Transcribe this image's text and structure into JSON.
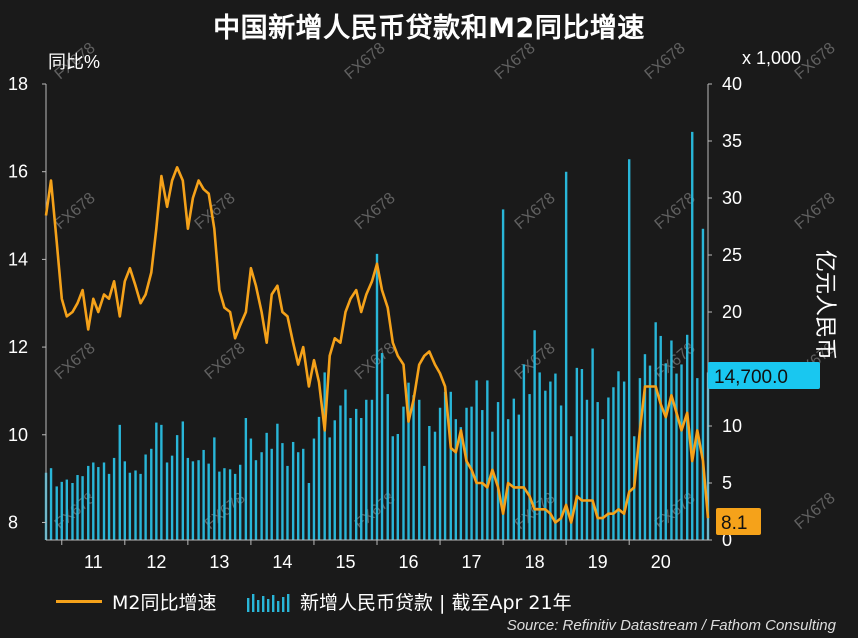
{
  "title": "中国新增人民币贷款和M2同比增速",
  "watermark": "FX678",
  "source": "Source: Refinitiv Datastream / Fathom Consulting",
  "colors": {
    "line": "#f5a21a",
    "bars": "#29b6d8",
    "bg": "#1a1a1a",
    "right_tag": "#19c7f0",
    "left_tag": "#f5a21a"
  },
  "chart_data": {
    "type": "bar+line",
    "left_axis": {
      "label": "同比%",
      "ticks": [
        "18",
        "16",
        "14",
        "12",
        "10",
        "8"
      ],
      "ylim": [
        7.6,
        18
      ]
    },
    "right_axis": {
      "label": "亿元人民币",
      "multiplier": "x 1,000",
      "ticks": [
        "40",
        "35",
        "30",
        "25",
        "20",
        "15",
        "10",
        "5",
        "0"
      ],
      "ylim": [
        0,
        40
      ]
    },
    "x_ticks": [
      "11",
      "12",
      "13",
      "14",
      "15",
      "16",
      "17",
      "18",
      "19",
      "20"
    ],
    "x_range": [
      2010.75,
      2021.25
    ],
    "end_labels": {
      "right": "14,700.0",
      "left": "8.1"
    },
    "legend": {
      "line": "M2同比增速",
      "bars": "新增人民币贷款 | 截至Apr 21年"
    },
    "series": [
      {
        "name": "M2同比增速",
        "type": "line",
        "x": [
          2010.75,
          2010.83,
          2010.92,
          2011.0,
          2011.08,
          2011.17,
          2011.25,
          2011.33,
          2011.42,
          2011.5,
          2011.58,
          2011.67,
          2011.75,
          2011.83,
          2011.92,
          2012.0,
          2012.08,
          2012.17,
          2012.25,
          2012.33,
          2012.42,
          2012.5,
          2012.58,
          2012.67,
          2012.75,
          2012.83,
          2012.92,
          2013.0,
          2013.08,
          2013.17,
          2013.25,
          2013.33,
          2013.42,
          2013.5,
          2013.58,
          2013.67,
          2013.75,
          2013.83,
          2013.92,
          2014.0,
          2014.08,
          2014.17,
          2014.25,
          2014.33,
          2014.42,
          2014.5,
          2014.58,
          2014.67,
          2014.75,
          2014.83,
          2014.92,
          2015.0,
          2015.08,
          2015.17,
          2015.25,
          2015.33,
          2015.42,
          2015.5,
          2015.58,
          2015.67,
          2015.75,
          2015.83,
          2015.92,
          2016.0,
          2016.08,
          2016.17,
          2016.25,
          2016.33,
          2016.42,
          2016.5,
          2016.58,
          2016.67,
          2016.75,
          2016.83,
          2016.92,
          2017.0,
          2017.08,
          2017.17,
          2017.25,
          2017.33,
          2017.42,
          2017.5,
          2017.58,
          2017.67,
          2017.75,
          2017.83,
          2017.92,
          2018.0,
          2018.08,
          2018.17,
          2018.25,
          2018.33,
          2018.42,
          2018.5,
          2018.58,
          2018.67,
          2018.75,
          2018.83,
          2018.92,
          2019.0,
          2019.08,
          2019.17,
          2019.25,
          2019.33,
          2019.42,
          2019.5,
          2019.58,
          2019.67,
          2019.75,
          2019.83,
          2019.92,
          2020.0,
          2020.08,
          2020.17,
          2020.25,
          2020.33,
          2020.42,
          2020.5,
          2020.58,
          2020.67,
          2020.75,
          2020.83,
          2020.92,
          2021.0,
          2021.08,
          2021.17,
          2021.25
        ],
        "values": [
          15.0,
          15.8,
          14.4,
          13.1,
          12.7,
          12.8,
          13.0,
          13.3,
          12.4,
          13.1,
          12.8,
          13.2,
          13.1,
          13.5,
          12.7,
          13.5,
          13.8,
          13.4,
          13.0,
          13.2,
          13.7,
          14.7,
          15.9,
          15.2,
          15.8,
          16.1,
          15.8,
          14.7,
          15.4,
          15.8,
          15.6,
          15.5,
          14.7,
          13.3,
          12.9,
          12.8,
          12.2,
          12.5,
          12.8,
          13.8,
          13.4,
          12.8,
          12.1,
          13.2,
          13.4,
          12.8,
          12.7,
          12.1,
          11.6,
          12.0,
          11.1,
          11.7,
          11.2,
          10.1,
          11.8,
          12.2,
          12.1,
          12.8,
          13.1,
          13.3,
          12.8,
          13.2,
          13.5,
          13.9,
          13.3,
          12.9,
          12.1,
          11.8,
          11.6,
          10.3,
          10.8,
          11.6,
          11.8,
          11.9,
          11.6,
          11.4,
          11.1,
          9.7,
          9.6,
          10.1,
          9.4,
          9.2,
          8.9,
          8.9,
          8.8,
          9.2,
          8.8,
          8.2,
          8.9,
          8.8,
          8.8,
          8.8,
          8.6,
          8.3,
          8.3,
          8.3,
          8.2,
          8.0,
          8.1,
          8.4,
          8.0,
          8.6,
          8.5,
          8.5,
          8.5,
          8.1,
          8.1,
          8.2,
          8.2,
          8.3,
          8.2,
          8.7,
          8.8,
          10.1,
          11.1,
          11.1,
          11.1,
          10.7,
          10.4,
          10.9,
          10.5,
          10.1,
          10.5,
          9.4,
          10.1,
          9.4,
          8.1
        ]
      },
      {
        "name": "新增人民币贷款",
        "type": "bar",
        "x": [
          2010.75,
          2010.83,
          2010.92,
          2011.0,
          2011.08,
          2011.17,
          2011.25,
          2011.33,
          2011.42,
          2011.5,
          2011.58,
          2011.67,
          2011.75,
          2011.83,
          2011.92,
          2012.0,
          2012.08,
          2012.17,
          2012.25,
          2012.33,
          2012.42,
          2012.5,
          2012.58,
          2012.67,
          2012.75,
          2012.83,
          2012.92,
          2013.0,
          2013.08,
          2013.17,
          2013.25,
          2013.33,
          2013.42,
          2013.5,
          2013.58,
          2013.67,
          2013.75,
          2013.83,
          2013.92,
          2014.0,
          2014.08,
          2014.17,
          2014.25,
          2014.33,
          2014.42,
          2014.5,
          2014.58,
          2014.67,
          2014.75,
          2014.83,
          2014.92,
          2015.0,
          2015.08,
          2015.17,
          2015.25,
          2015.33,
          2015.42,
          2015.5,
          2015.58,
          2015.67,
          2015.75,
          2015.83,
          2015.92,
          2016.0,
          2016.08,
          2016.17,
          2016.25,
          2016.33,
          2016.42,
          2016.5,
          2016.58,
          2016.67,
          2016.75,
          2016.83,
          2016.92,
          2017.0,
          2017.08,
          2017.17,
          2017.25,
          2017.33,
          2017.42,
          2017.5,
          2017.58,
          2017.67,
          2017.75,
          2017.83,
          2017.92,
          2018.0,
          2018.08,
          2018.17,
          2018.25,
          2018.33,
          2018.42,
          2018.5,
          2018.58,
          2018.67,
          2018.75,
          2018.83,
          2018.92,
          2019.0,
          2019.08,
          2019.17,
          2019.25,
          2019.33,
          2019.42,
          2019.5,
          2019.58,
          2019.67,
          2019.75,
          2019.83,
          2019.92,
          2020.0,
          2020.08,
          2020.17,
          2020.25,
          2020.33,
          2020.42,
          2020.5,
          2020.58,
          2020.67,
          2020.75,
          2020.83,
          2020.92,
          2021.0,
          2021.08,
          2021.17,
          2021.25
        ],
        "values": [
          5.9,
          6.3,
          4.7,
          5.1,
          5.3,
          5.0,
          5.7,
          5.6,
          6.5,
          6.8,
          6.4,
          6.8,
          5.8,
          7.2,
          10.1,
          6.9,
          5.9,
          6.1,
          5.8,
          7.5,
          8.0,
          10.3,
          10.1,
          6.8,
          7.4,
          9.2,
          10.4,
          7.2,
          6.9,
          7.0,
          7.9,
          6.7,
          9.0,
          6.0,
          6.3,
          6.2,
          5.8,
          6.6,
          10.7,
          8.9,
          7.0,
          7.7,
          9.4,
          8.0,
          10.2,
          8.5,
          6.5,
          8.6,
          7.7,
          8.0,
          5.0,
          8.9,
          10.8,
          14.7,
          9.0,
          10.5,
          11.8,
          13.2,
          10.7,
          11.5,
          10.7,
          12.3,
          12.3,
          25.1,
          16.4,
          12.8,
          9.1,
          9.3,
          11.7,
          13.8,
          12.7,
          12.3,
          6.5,
          10.0,
          9.5,
          11.6,
          13.0,
          13.0,
          10.6,
          9.9,
          11.6,
          11.7,
          14.0,
          11.4,
          14.0,
          9.5,
          12.1,
          29.0,
          10.6,
          12.4,
          11.0,
          15.4,
          12.8,
          18.4,
          14.7,
          13.1,
          13.9,
          14.6,
          11.8,
          32.3,
          9.1,
          15.1,
          15.0,
          12.3,
          16.8,
          12.1,
          10.6,
          12.5,
          13.4,
          14.8,
          13.9,
          33.4,
          9.1,
          14.2,
          16.3,
          15.3,
          19.1,
          17.9,
          15.5,
          17.5,
          14.6,
          15.4,
          18.0,
          35.8,
          14.2,
          27.3,
          14.7
        ]
      }
    ]
  }
}
